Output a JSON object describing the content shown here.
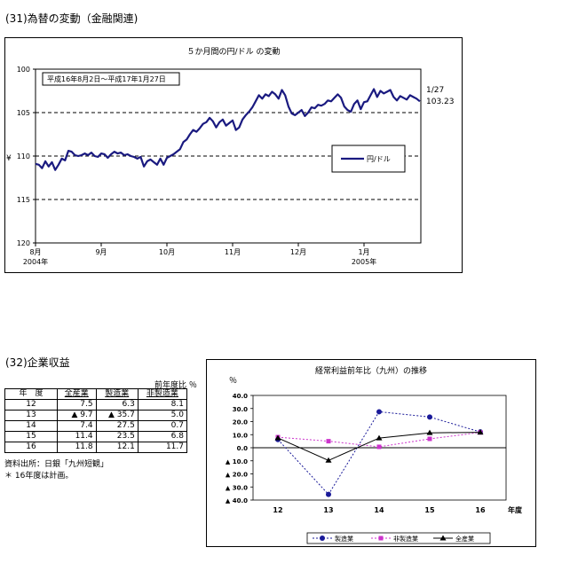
{
  "section1": {
    "title": "(31)為替の変動（金融関連)"
  },
  "fx_chart": {
    "chart_data": {
      "type": "line",
      "title": "５か月間の円/ドル の変動",
      "subtitle": "平成16年8月2日～平成17年1月27日",
      "ylabel": "¥",
      "y_inverted": true,
      "ylim": [
        100,
        120
      ],
      "y_ticks": [
        "100",
        "105",
        "110",
        "115",
        "120"
      ],
      "x_ticks": [
        "8月",
        "9月",
        "10月",
        "11月",
        "12月",
        "1月"
      ],
      "x_year_labels": [
        {
          "under": "8月",
          "label": "2004年"
        },
        {
          "under": "1月",
          "label": "2005年"
        }
      ],
      "legend": "円/ドル",
      "end_annotation": {
        "date": "1/27",
        "value": "103.23"
      },
      "grid": "dashed at 105, 110, 115",
      "series": [
        {
          "name": "円/ドル",
          "x_month_index": [
            0,
            0.05,
            0.1,
            0.15,
            0.2,
            0.25,
            0.3,
            0.35,
            0.4,
            0.45,
            0.5,
            0.55,
            0.6,
            0.65,
            0.7,
            0.75,
            0.8,
            0.85,
            0.9,
            0.95,
            1.0,
            1.05,
            1.1,
            1.15,
            1.2,
            1.25,
            1.3,
            1.35,
            1.4,
            1.45,
            1.5,
            1.55,
            1.6,
            1.65,
            1.7,
            1.75,
            1.8,
            1.85,
            1.9,
            1.95,
            2.0,
            2.05,
            2.1,
            2.15,
            2.2,
            2.25,
            2.3,
            2.35,
            2.4,
            2.45,
            2.5,
            2.55,
            2.6,
            2.65,
            2.7,
            2.75,
            2.8,
            2.85,
            2.9,
            2.95,
            3.0,
            3.05,
            3.1,
            3.15,
            3.2,
            3.25,
            3.3,
            3.35,
            3.4,
            3.45,
            3.5,
            3.55,
            3.6,
            3.65,
            3.7,
            3.75,
            3.8,
            3.85,
            3.9,
            3.95,
            4.0,
            4.05,
            4.1,
            4.15,
            4.2,
            4.25,
            4.3,
            4.35,
            4.4,
            4.45,
            4.5,
            4.55,
            4.6,
            4.65,
            4.7,
            4.75,
            4.8,
            4.85,
            4.9,
            4.95,
            5.0,
            5.05,
            5.1,
            5.15,
            5.2,
            5.25,
            5.3,
            5.35,
            5.4,
            5.45,
            5.5,
            5.55,
            5.6,
            5.65,
            5.7,
            5.75,
            5.8,
            5.85
          ],
          "values": [
            110.9,
            111.0,
            111.4,
            110.6,
            111.2,
            110.7,
            111.6,
            111.0,
            110.3,
            110.5,
            109.4,
            109.5,
            109.9,
            110.0,
            109.9,
            109.7,
            109.9,
            109.6,
            110.0,
            110.1,
            109.7,
            109.8,
            110.2,
            109.8,
            109.5,
            109.7,
            109.6,
            109.9,
            109.8,
            110.0,
            110.1,
            110.3,
            110.1,
            111.2,
            110.6,
            110.4,
            110.7,
            111.0,
            110.3,
            111.0,
            110.2,
            110.0,
            109.8,
            109.5,
            109.2,
            108.4,
            108.1,
            107.5,
            107.0,
            107.2,
            106.8,
            106.3,
            106.1,
            105.6,
            106.0,
            106.7,
            106.1,
            105.8,
            106.5,
            106.2,
            105.9,
            107.0,
            106.7,
            105.8,
            105.3,
            104.9,
            104.4,
            103.7,
            103.0,
            103.4,
            102.9,
            103.1,
            102.6,
            102.9,
            103.4,
            102.4,
            103.0,
            104.3,
            105.1,
            105.3,
            105.0,
            104.7,
            105.4,
            105.0,
            104.4,
            104.5,
            104.1,
            104.2,
            104.0,
            103.6,
            103.7,
            103.3,
            102.9,
            103.3,
            104.3,
            104.7,
            104.9,
            104.0,
            103.6,
            104.6,
            103.8,
            103.7,
            103.0,
            102.3,
            103.2,
            102.5,
            102.8,
            102.6,
            102.4,
            103.2,
            103.6,
            103.1,
            103.3,
            103.5,
            103.0,
            103.2,
            103.4,
            103.7
          ]
        }
      ]
    }
  },
  "section2": {
    "title": "(32)企業収益",
    "ratio_note": "前年度比 ％",
    "table": {
      "headers": [
        "年　度",
        "全産業",
        "製造業",
        "非製造業"
      ],
      "rows": [
        [
          "12",
          "7.5",
          "6.3",
          "8.1"
        ],
        [
          "13",
          "▲ 9.7",
          "▲ 35.7",
          "5.0"
        ],
        [
          "14",
          "7.4",
          "27.5",
          "0.7"
        ],
        [
          "15",
          "11.4",
          "23.5",
          "6.8"
        ],
        [
          "16",
          "11.8",
          "12.1",
          "11.7"
        ]
      ]
    },
    "source": "資料出所：日銀「九州短観」",
    "footnote": "＊ 16年度は計画。"
  },
  "profit_chart": {
    "chart_data": {
      "type": "line",
      "title": "経常利益前年比（九州）の推移",
      "ylabel": "％",
      "ylim": [
        -40,
        40
      ],
      "y_ticks": [
        "40.0",
        "30.0",
        "20.0",
        "10.0",
        "0.0",
        "▲ 10.0",
        "▲ 20.0",
        "▲ 30.0",
        "▲ 40.0"
      ],
      "categories": [
        "12",
        "13",
        "14",
        "15",
        "16"
      ],
      "x_unit": "年度",
      "legend_position": "bottom",
      "series": [
        {
          "name": "製造業",
          "values": [
            6.3,
            -35.7,
            27.5,
            23.5,
            12.1
          ],
          "color": "#1a1a99"
        },
        {
          "name": "非製造業",
          "values": [
            8.1,
            5.0,
            0.7,
            6.8,
            11.7
          ],
          "color": "#cc33cc"
        },
        {
          "name": "全産業",
          "values": [
            7.5,
            -9.7,
            7.4,
            11.4,
            11.8
          ],
          "color": "#000000"
        }
      ]
    }
  }
}
